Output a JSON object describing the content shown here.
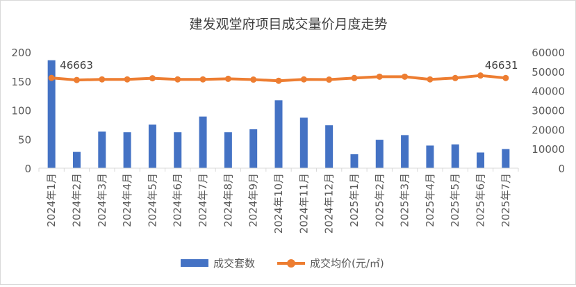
{
  "chart_data": {
    "type": "bar+line",
    "title": "建发观堂府项目成交量价月度走势",
    "categories": [
      "2024年1月",
      "2024年2月",
      "2024年3月",
      "2024年4月",
      "2024年5月",
      "2024年6月",
      "2024年7月",
      "2024年8月",
      "2024年9月",
      "2024年10月",
      "2024年11月",
      "2024年12月",
      "2025年1月",
      "2025年2月",
      "2025年3月",
      "2025年4月",
      "2025年5月",
      "2025年6月",
      "2025年7月"
    ],
    "series": [
      {
        "name": "成交套数",
        "type": "bar",
        "axis": "left",
        "color": "#4472C4",
        "values": [
          186,
          28,
          63,
          62,
          75,
          62,
          89,
          62,
          67,
          117,
          87,
          74,
          24,
          49,
          57,
          39,
          41,
          27,
          33
        ]
      },
      {
        "name": "成交均价(元/㎡)",
        "type": "line",
        "axis": "right",
        "color": "#ED7D31",
        "values": [
          46663,
          45600,
          45900,
          45900,
          46500,
          45900,
          45900,
          46200,
          45800,
          45200,
          45900,
          45800,
          46600,
          47300,
          47300,
          45900,
          46600,
          47900,
          46631
        ]
      }
    ],
    "y_left": {
      "ticks": [
        "0",
        "50",
        "100",
        "150",
        "200"
      ],
      "min": 0,
      "max": 200
    },
    "y_right": {
      "ticks": [
        "0",
        "10000",
        "20000",
        "30000",
        "40000",
        "50000",
        "60000"
      ],
      "min": 0,
      "max": 60000
    },
    "annotations": [
      {
        "index": 0,
        "text": "46663"
      },
      {
        "index": 18,
        "text": "46631"
      }
    ],
    "legend": {
      "position": "bottom",
      "items": [
        "成交套数",
        "成交均价(元/㎡)"
      ]
    },
    "grid": false
  }
}
